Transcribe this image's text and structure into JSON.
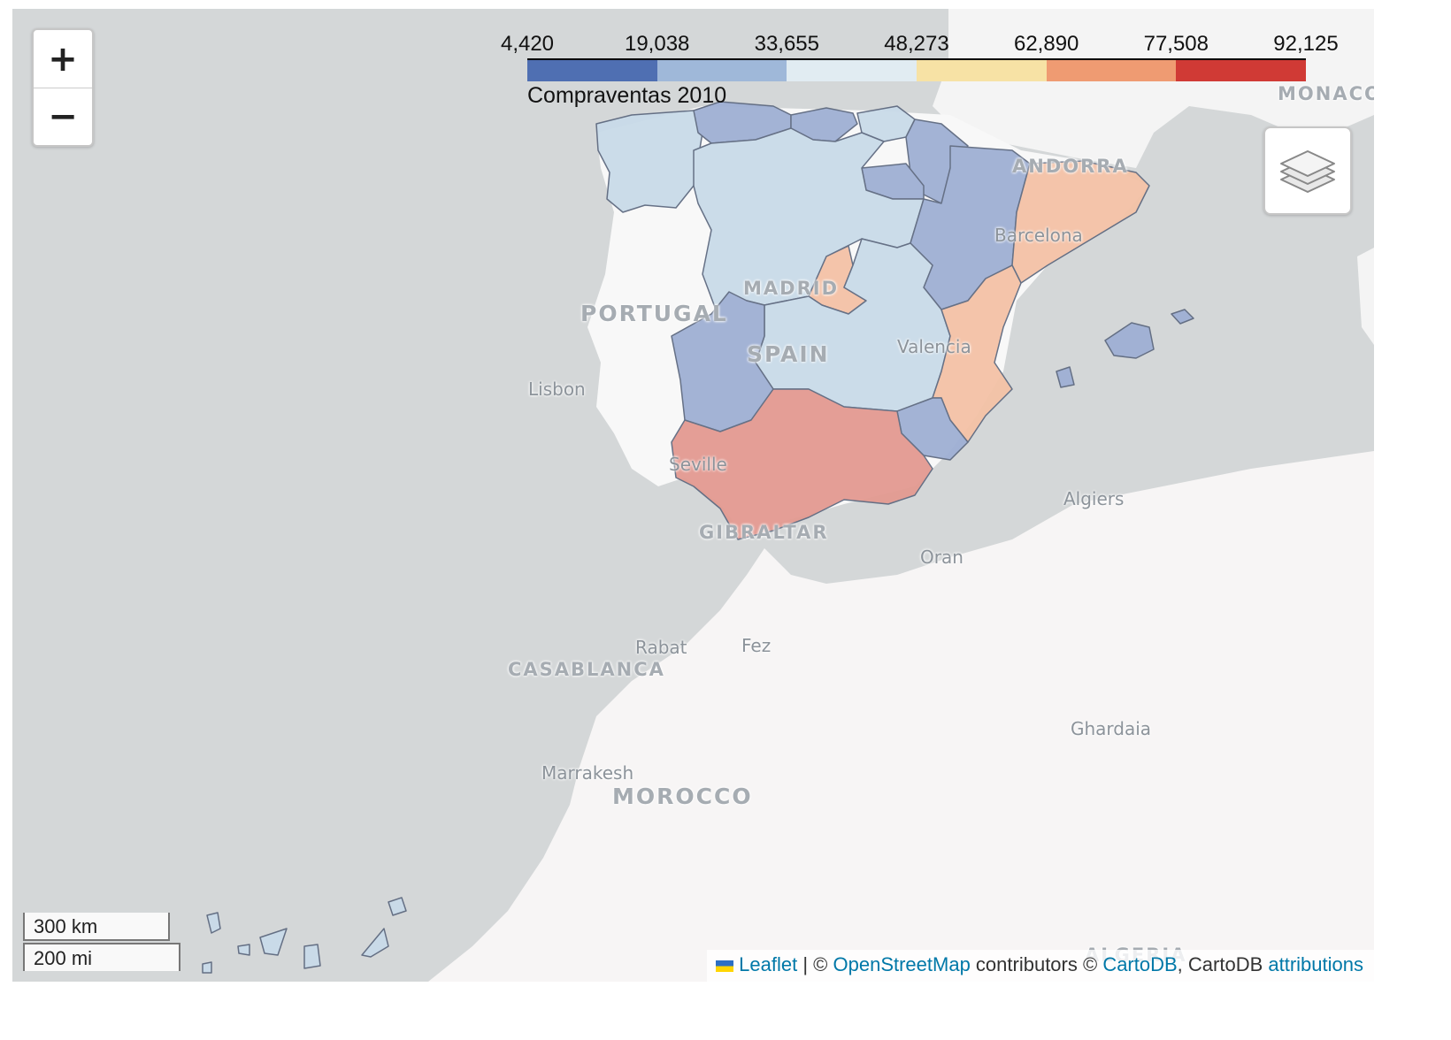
{
  "legend": {
    "ticks": [
      "4,420",
      "19,038",
      "33,655",
      "48,273",
      "62,890",
      "77,508",
      "92,125"
    ],
    "colors": [
      "#4f6fb2",
      "#9fb8d9",
      "#e1ecf2",
      "#f7e2a5",
      "#ef9b72",
      "#d03a35"
    ],
    "caption": "Compraventas 2010"
  },
  "zoom": {
    "in_label": "+",
    "out_label": "−"
  },
  "layers_control": {
    "icon": "layers-icon"
  },
  "scale": {
    "km": "300 km",
    "mi": "200 mi"
  },
  "attribution": {
    "leaflet": "Leaflet",
    "sep1": " | © ",
    "osm": "OpenStreetMap",
    "mid": " contributors © ",
    "cartodb": "CartoDB",
    "mid2": ", CartoDB ",
    "attributions": "attributions"
  },
  "labels": {
    "portugal": "PORTUGAL",
    "spain": "SPAIN",
    "madrid": "MADRID",
    "lisbon": "Lisbon",
    "valencia": "Valencia",
    "barcelona": "Barcelona",
    "seville": "Seville",
    "gibraltar": "GIBRALTAR",
    "andorra": "ANDORRA",
    "monaco": "MONACO",
    "algiers": "Algiers",
    "oran": "Oran",
    "rabat": "Rabat",
    "fez": "Fez",
    "casablanca": "CASABLANCA",
    "marrakesh": "Marrakesh",
    "morocco": "MOROCCO",
    "ghardaia": "Ghardaia",
    "algeria": "ALGERIA"
  },
  "regions": [
    {
      "name": "Galicia",
      "color": "#c9dbe9"
    },
    {
      "name": "Asturias",
      "color": "#9fb0d4"
    },
    {
      "name": "Cantabria",
      "color": "#9fb0d4"
    },
    {
      "name": "País Vasco",
      "color": "#9fb0d4"
    },
    {
      "name": "Navarra",
      "color": "#c9dbe9"
    },
    {
      "name": "La Rioja",
      "color": "#9fb0d4"
    },
    {
      "name": "Aragón",
      "color": "#9fb0d4"
    },
    {
      "name": "Cataluña",
      "color": "#f4c2a6"
    },
    {
      "name": "Castilla y León",
      "color": "#c9dbe9"
    },
    {
      "name": "Madrid",
      "color": "#f4c2a6"
    },
    {
      "name": "Castilla-La Mancha",
      "color": "#c9dbe9"
    },
    {
      "name": "Extremadura",
      "color": "#9fb0d4"
    },
    {
      "name": "Comunidad Valenciana",
      "color": "#f4c2a6"
    },
    {
      "name": "Murcia",
      "color": "#9fb0d4"
    },
    {
      "name": "Andalucía",
      "color": "#e39a91"
    },
    {
      "name": "Islas Baleares",
      "color": "#9fb0d4"
    },
    {
      "name": "Canarias",
      "color": "#c9dbe9"
    }
  ]
}
